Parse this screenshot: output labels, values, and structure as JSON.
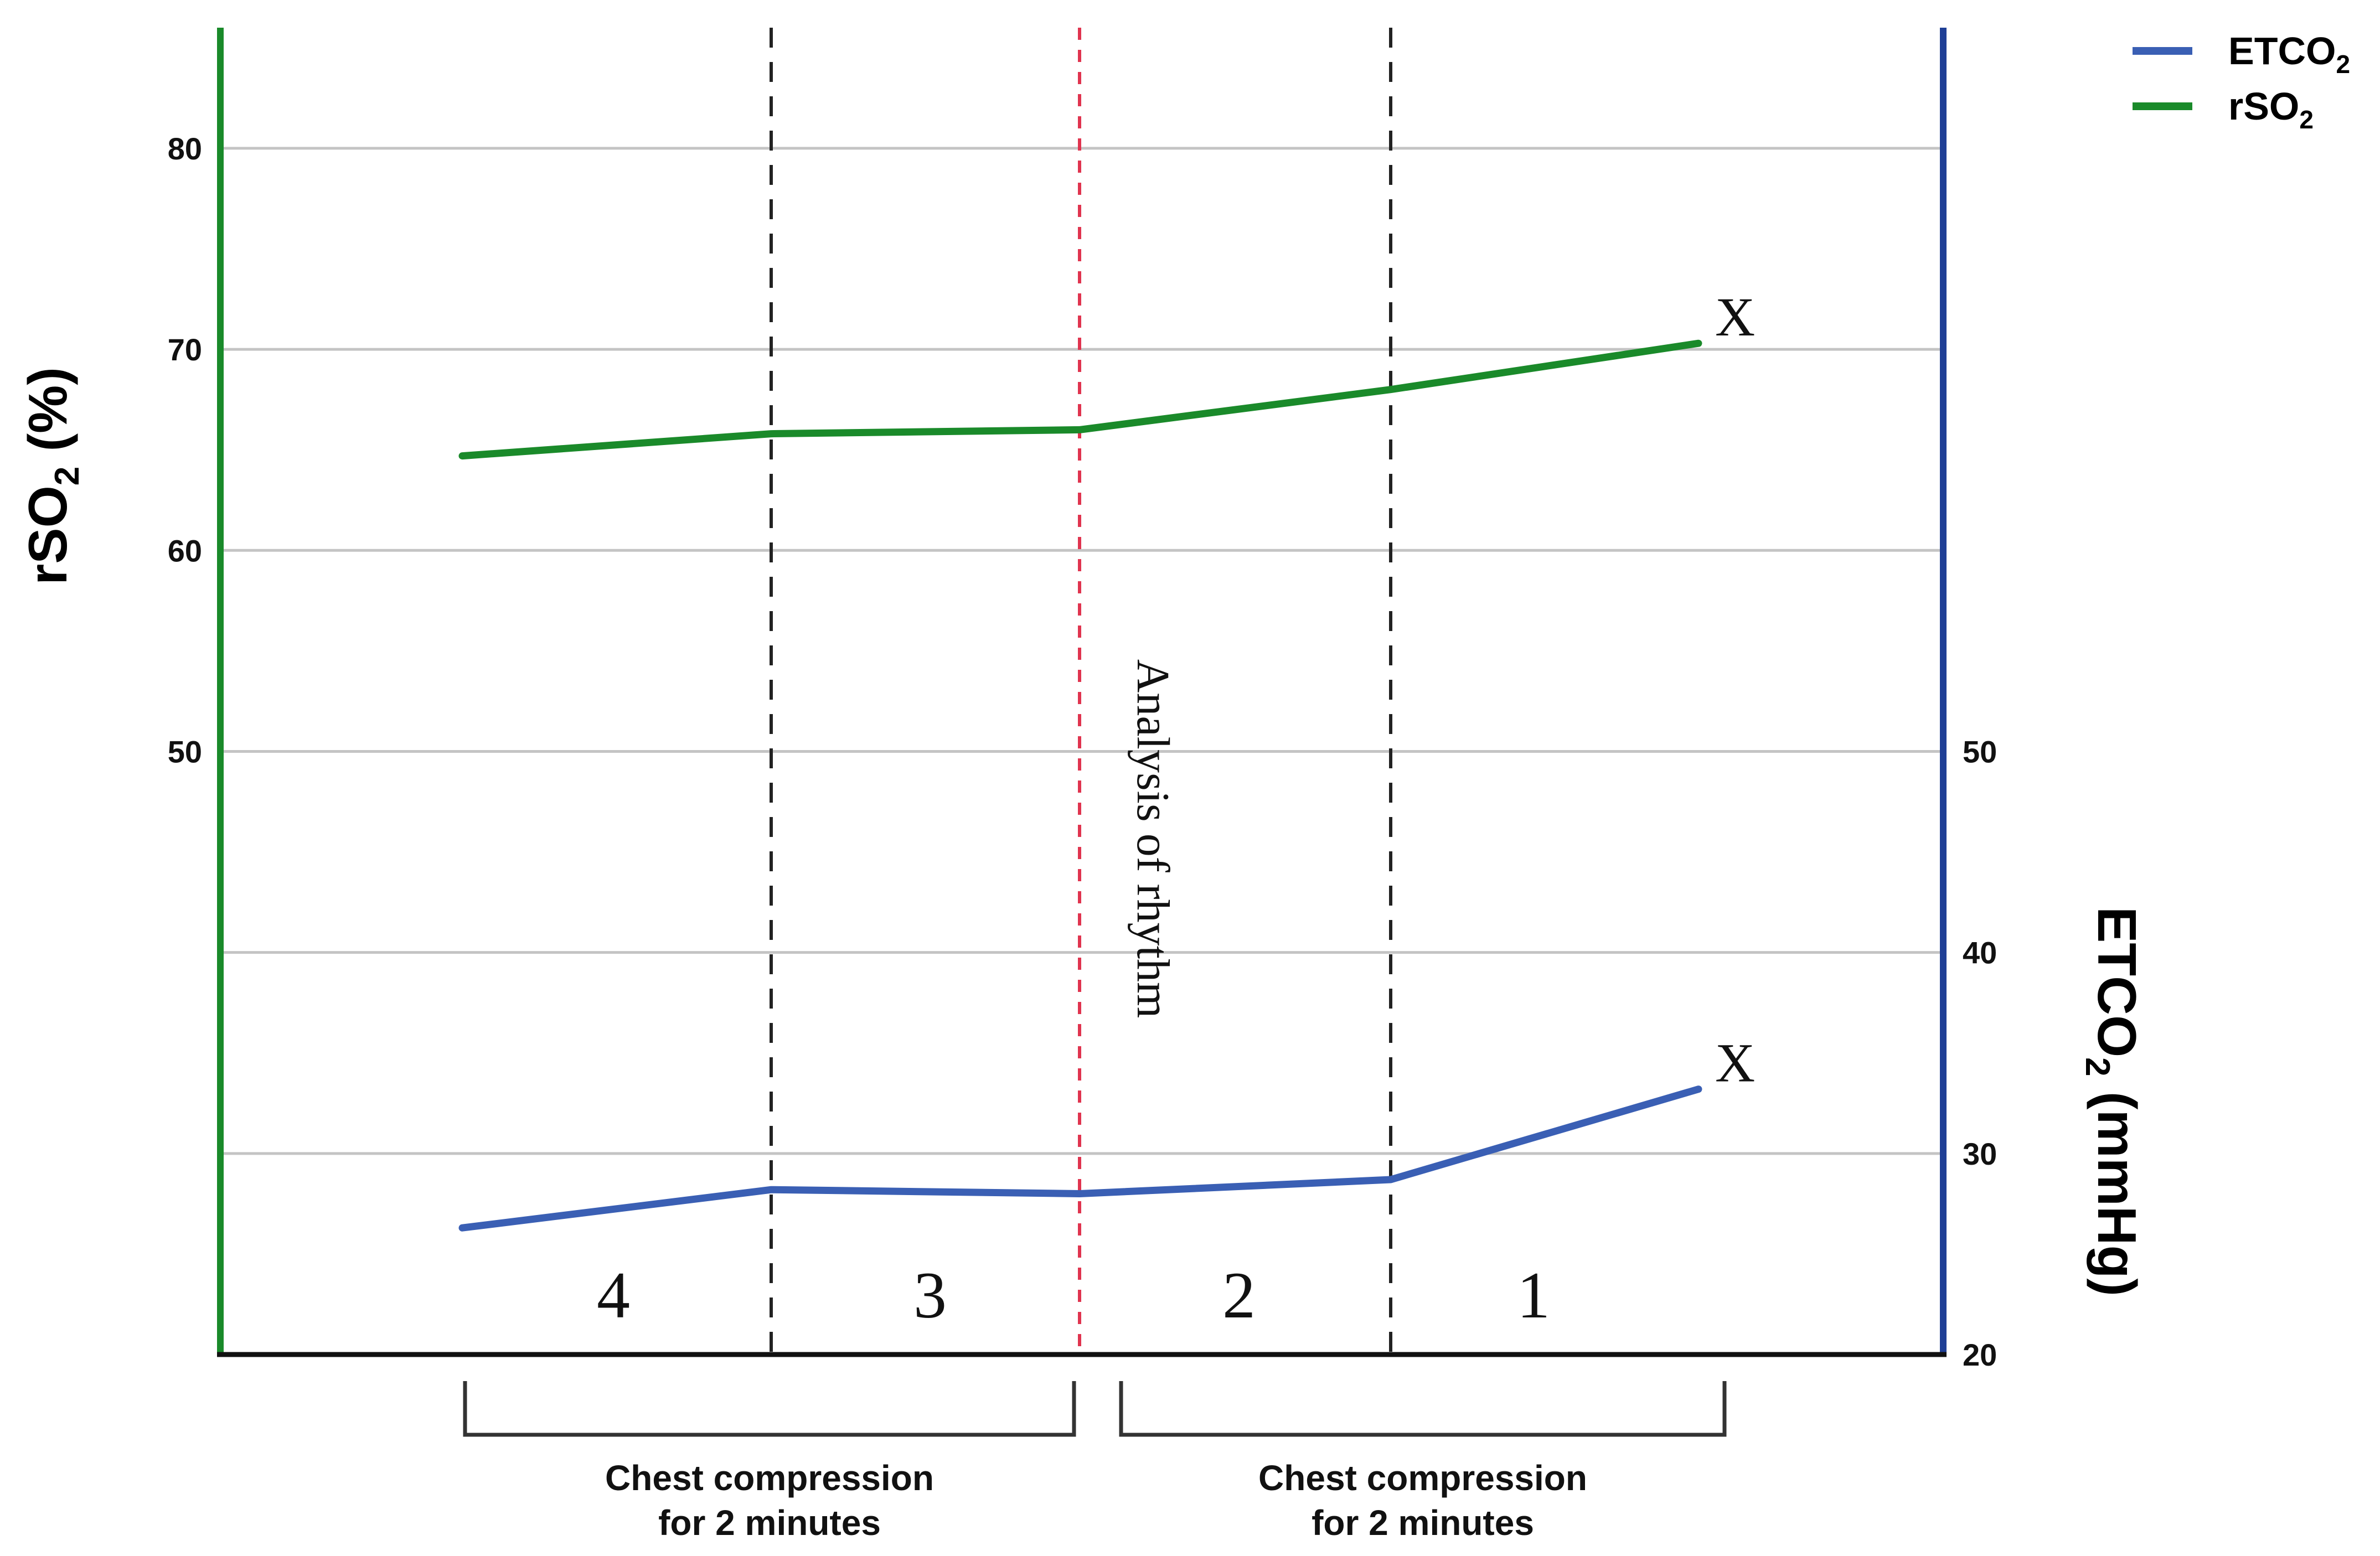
{
  "chart_data": {
    "type": "line",
    "x_points": [
      1,
      2,
      3,
      4,
      5
    ],
    "left_axis": {
      "label_main": "rSO",
      "label_sub": "2",
      "label_tail": " (%)",
      "ylim": [
        20,
        86
      ],
      "ticks": [
        "80",
        "70",
        "60",
        "50"
      ],
      "tick_values": [
        80,
        70,
        60,
        50
      ]
    },
    "right_axis": {
      "label_main": "ETCO",
      "label_sub": "2",
      "label_tail": " (mmHg)",
      "ylim": [
        20,
        86
      ],
      "ticks": [
        "50",
        "40",
        "30",
        "20"
      ],
      "tick_values": [
        50,
        40,
        30,
        20
      ]
    },
    "gridlines": [
      80,
      70,
      60,
      50,
      40,
      30
    ],
    "series": [
      {
        "name_main": "ETCO",
        "name_sub": "2",
        "axis": "right",
        "color": "#3a5fb4",
        "values": [
          26.3,
          28.2,
          28.0,
          28.7,
          33.2
        ]
      },
      {
        "name_main": "rSO",
        "name_sub": "2",
        "axis": "left",
        "color": "#1a8a2a",
        "values": [
          64.7,
          65.8,
          66.0,
          68.0,
          70.3
        ]
      }
    ],
    "end_markers": [
      "X",
      "X"
    ],
    "phase_numbers": [
      "4",
      "3",
      "2",
      "1"
    ],
    "rhythm_label": "Analysis of rhythm",
    "compression_periods": [
      {
        "line1": "Chest compression",
        "line2": "for 2 minutes"
      },
      {
        "line1": "Chest compression",
        "line2": "for 2 minutes"
      }
    ],
    "legend_position": "top-right",
    "colors": {
      "left_axis": "#1a8a2a",
      "right_axis": "#1f3f96",
      "bottom_axis": "#111111",
      "grid": "#c4c4c4",
      "phase_divider": "#222222",
      "rhythm_divider": "#e0344f"
    }
  }
}
